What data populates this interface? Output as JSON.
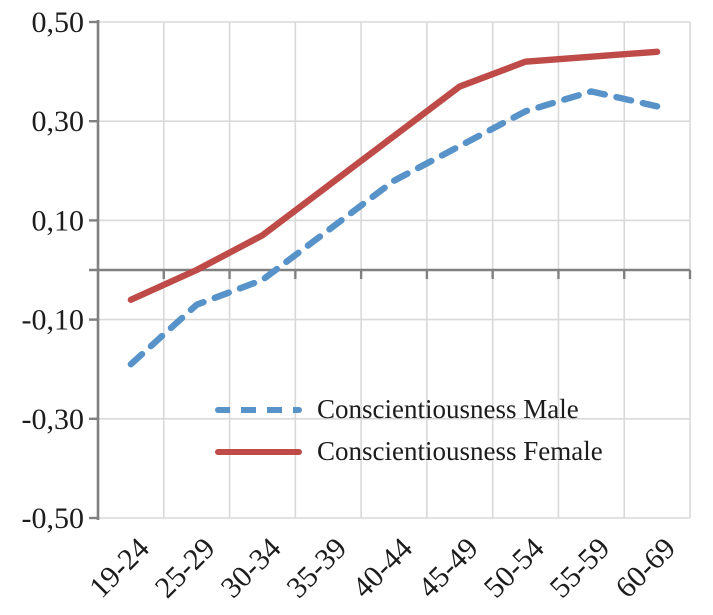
{
  "chart_data": {
    "type": "line",
    "title": "",
    "xlabel": "",
    "ylabel": "",
    "categories": [
      "19-24",
      "25-29",
      "30-34",
      "35-39",
      "40-44",
      "45-49",
      "50-54",
      "55-59",
      "60-69"
    ],
    "series": [
      {
        "name": "Conscientiousness Male",
        "style": "dashed",
        "color": "#5792C9",
        "values": [
          -0.19,
          -0.07,
          -0.02,
          0.08,
          0.18,
          0.25,
          0.32,
          0.36,
          0.33
        ]
      },
      {
        "name": "Conscientiousness Female",
        "style": "solid",
        "color": "#BE4B48",
        "values": [
          -0.06,
          0.0,
          0.07,
          0.17,
          0.27,
          0.37,
          0.42,
          0.43,
          0.44
        ]
      }
    ],
    "ylim": [
      -0.5,
      0.5
    ],
    "y_ticks": [
      {
        "value": 0.5,
        "label": "0,50"
      },
      {
        "value": 0.3,
        "label": "0,30"
      },
      {
        "value": 0.1,
        "label": "0,10"
      },
      {
        "value": -0.1,
        "label": "-0,10"
      },
      {
        "value": -0.3,
        "label": "-0,30"
      },
      {
        "value": -0.5,
        "label": "-0,50"
      }
    ],
    "grid": "on",
    "legend_position": "inside-bottom-center"
  },
  "colors": {
    "male_line": "#5792C9",
    "female_line": "#BE4B48",
    "gridline": "#D9D9D9",
    "axis": "#808080",
    "text": "#1c1c1c",
    "background": "#ffffff"
  }
}
